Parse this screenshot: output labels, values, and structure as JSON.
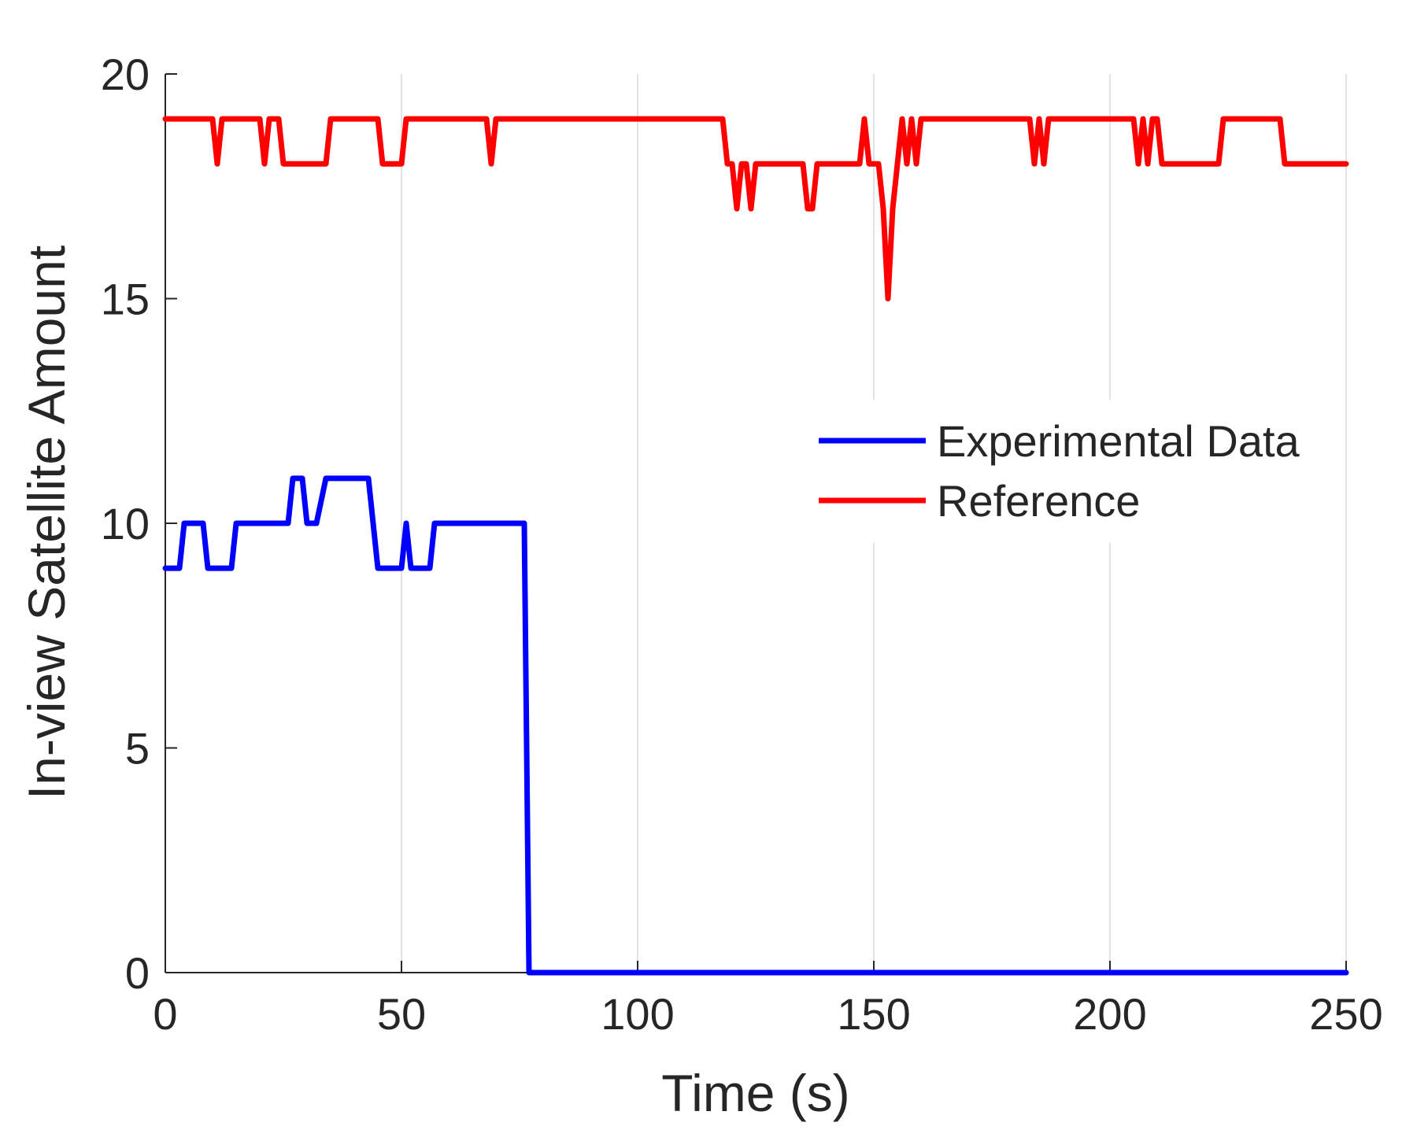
{
  "chart_data": {
    "type": "line",
    "title": "",
    "xlabel": "Time (s)",
    "ylabel": "In-view Satellite Amount",
    "xlim": [
      0,
      250
    ],
    "ylim": [
      0,
      20
    ],
    "xticks": [
      0,
      50,
      100,
      150,
      200,
      250
    ],
    "yticks": [
      0,
      5,
      10,
      15,
      20
    ],
    "xtick_labels": [
      "0",
      "50",
      "100",
      "150",
      "200",
      "250"
    ],
    "ytick_labels": [
      "0",
      "5",
      "10",
      "15",
      "20"
    ],
    "grid": "x-only",
    "legend_position": "right-center",
    "series": [
      {
        "name": "Experimental Data",
        "color": "#0000ff",
        "x": [
          0,
          3,
          4,
          7,
          8,
          9,
          14,
          15,
          26,
          27,
          29,
          30,
          32,
          34,
          35,
          43,
          44,
          45,
          50,
          51,
          52,
          53,
          56,
          57,
          76,
          77,
          250
        ],
        "y": [
          9,
          9,
          10,
          10,
          10,
          9,
          9,
          10,
          10,
          11,
          11,
          10,
          10,
          11,
          11,
          11,
          10,
          9,
          9,
          10,
          9,
          9,
          9,
          10,
          10,
          0,
          0
        ]
      },
      {
        "name": "Reference",
        "color": "#ff0000",
        "x": [
          0,
          10,
          11,
          12,
          20,
          21,
          22,
          23,
          24,
          25,
          34,
          35,
          45,
          46,
          50,
          51,
          68,
          69,
          70,
          118,
          119,
          120,
          121,
          122,
          123,
          124,
          125,
          126,
          135,
          136,
          137,
          138,
          147,
          148,
          149,
          150,
          151,
          152,
          153,
          154,
          155,
          156,
          157,
          158,
          159,
          160,
          161,
          183,
          184,
          185,
          186,
          187,
          205,
          206,
          207,
          208,
          209,
          210,
          211,
          223,
          224,
          235,
          236,
          237,
          250
        ],
        "y": [
          19,
          19,
          18,
          19,
          19,
          18,
          19,
          19,
          19,
          18,
          18,
          19,
          19,
          18,
          18,
          19,
          19,
          18,
          19,
          19,
          18,
          18,
          17,
          18,
          18,
          17,
          18,
          18,
          18,
          17,
          17,
          18,
          18,
          19,
          18,
          18,
          18,
          17,
          15,
          17,
          18,
          19,
          18,
          19,
          18,
          19,
          19,
          19,
          18,
          19,
          18,
          19,
          19,
          18,
          19,
          18,
          19,
          19,
          18,
          18,
          19,
          19,
          19,
          18,
          18
        ]
      }
    ]
  }
}
